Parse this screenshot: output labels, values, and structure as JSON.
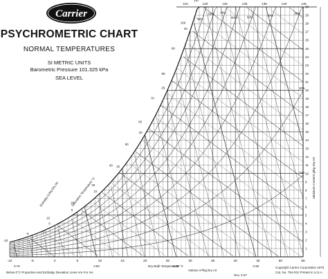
{
  "header": {
    "brand": "Carrier",
    "title": "PSYCHROMETRIC CHART",
    "subtitle": "NORMAL TEMPERATURES",
    "units": "SI METRIC UNITS",
    "pressure": "Barometric Pressure 101.325 kPa",
    "level": "SEA LEVEL"
  },
  "footer": {
    "note": "Below 0°C Properties and Enthalpy Deviation Lines Are For Ice",
    "revision": "Rev. 6 87",
    "copyright": "Copyright   Carrier Corporation 1975",
    "catalog": "Cat. No. 794-031   Printed in U.S.A."
  },
  "colors": {
    "ink": "#111111",
    "paper": "#ffffff"
  },
  "chart_data": {
    "type": "line",
    "xlabel": "Dry Bulb Temperature °C",
    "ylabel": "Moisture Content g/kg Dry Air",
    "xlim": [
      -10,
      55
    ],
    "ylim": [
      0,
      30
    ],
    "x_ticks": [
      "-10",
      "-5",
      "0",
      "5",
      "10",
      "15",
      "20",
      "25",
      "30",
      "35",
      "40",
      "45",
      "50",
      "55"
    ],
    "y_ticks": [
      "1",
      "2",
      "3",
      "4",
      "5",
      "6",
      "7",
      "8",
      "9",
      "10",
      "11",
      "12",
      "13",
      "14",
      "15",
      "16",
      "17",
      "18",
      "19",
      "20",
      "21",
      "22",
      "23",
      "24",
      "25",
      "26",
      "27",
      "28",
      "29",
      "30"
    ],
    "top_scale_ticks": [
      "115",
      "120",
      "125",
      "130",
      "135",
      "140",
      "145"
    ],
    "volume_label": "Volume m³/kg Dry Air",
    "volume_ticks": [
      "0.75",
      "0.80",
      "0.85",
      "0.90",
      "0.95"
    ],
    "saturation_label": "Saturation Temperature °C",
    "saturation_ticks": [
      "-10",
      "-5",
      "0",
      "5",
      "10",
      "15",
      "20",
      "25",
      "30"
    ],
    "enthalpy_label": "Enthalpy kJ/kg Dry Air",
    "enthalpy_ticks": [
      "10",
      "20",
      "30",
      "40",
      "50",
      "60",
      "70",
      "80",
      "90",
      "100",
      "110"
    ],
    "relative_humidity_lines_percent": [
      10,
      20,
      30,
      40,
      50,
      60,
      70,
      80,
      90,
      100
    ],
    "grid": true
  }
}
